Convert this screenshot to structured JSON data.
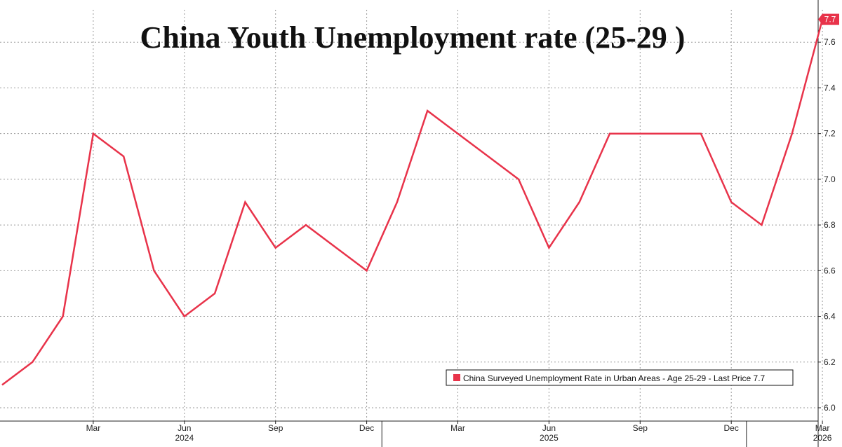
{
  "chart_data": {
    "type": "line",
    "title": "China Youth Unemployment rate (25-29 )",
    "x": [
      "2023-12",
      "2024-01",
      "2024-02",
      "2024-03",
      "2024-04",
      "2024-05",
      "2024-06",
      "2024-07",
      "2024-08",
      "2024-09",
      "2024-10",
      "2024-11",
      "2024-12",
      "2025-01",
      "2025-02",
      "2025-03",
      "2025-04",
      "2025-05",
      "2025-06",
      "2025-07",
      "2025-08",
      "2025-09",
      "2025-10",
      "2025-11",
      "2025-12",
      "2026-01",
      "2026-02",
      "2026-03"
    ],
    "series": [
      {
        "name": "China Surveyed Unemployment Rate in Urban Areas - Age 25-29 - Last Price 7.7",
        "color": "#e8334a",
        "values": [
          6.1,
          6.2,
          6.4,
          7.2,
          7.1,
          6.6,
          6.4,
          6.5,
          6.9,
          6.7,
          6.8,
          6.7,
          6.6,
          6.9,
          7.3,
          7.2,
          7.1,
          7.0,
          6.7,
          6.9,
          7.2,
          7.2,
          7.2,
          7.2,
          6.9,
          6.8,
          7.2,
          7.7
        ]
      }
    ],
    "ylim": [
      6.0,
      7.8
    ],
    "yticks": [
      "6.0",
      "6.2",
      "6.4",
      "6.6",
      "6.8",
      "7.0",
      "7.2",
      "7.4",
      "7.6",
      "7.8"
    ],
    "xtick_labels": [
      "Mar",
      "Jun",
      "Sep",
      "Dec",
      "Mar",
      "Jun",
      "Sep",
      "Dec",
      "Mar"
    ],
    "year_labels": [
      "2024",
      "2025",
      "2026"
    ],
    "last_price_label": "7.7",
    "grid": true,
    "legend_position": "bottom-right"
  }
}
